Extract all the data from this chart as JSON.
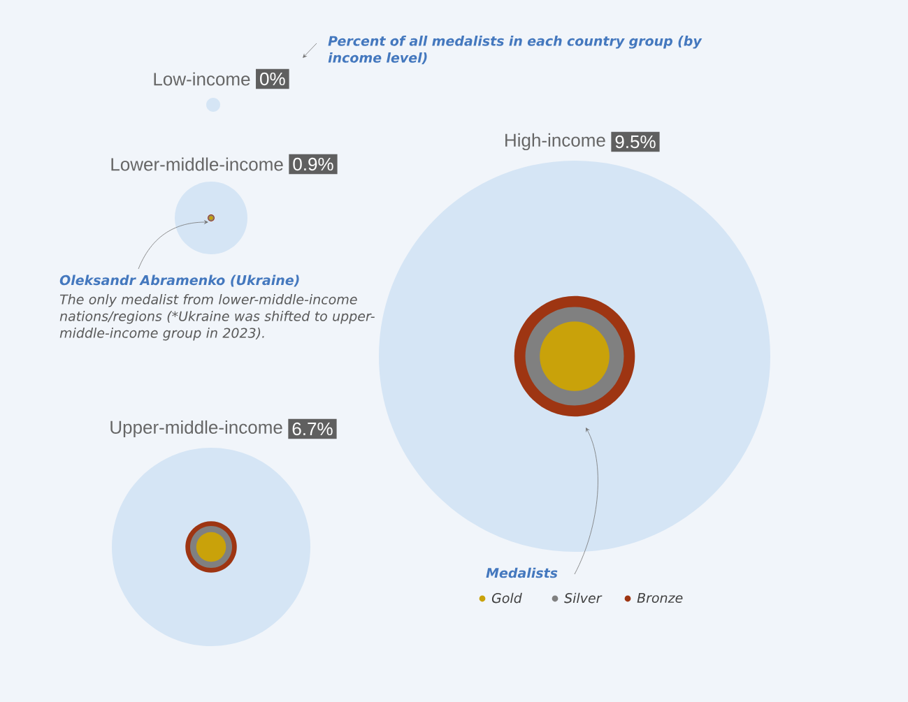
{
  "chart_data": {
    "type": "other",
    "categories": [
      "Low-income",
      "Lower-middle-income",
      "Upper-middle-income",
      "High-income"
    ],
    "values": [
      0,
      0.9,
      6.7,
      9.5
    ],
    "value_labels": [
      "0%",
      "0.9%",
      "6.7%",
      "9.5%"
    ],
    "legend_title": "Medalists",
    "series": [
      {
        "name": "Gold",
        "color": "#c9a20a",
        "values": [
          null,
          null,
          null,
          null
        ]
      },
      {
        "name": "Silver",
        "color": "#808080",
        "values": [
          null,
          null,
          null,
          null
        ]
      },
      {
        "name": "Bronze",
        "color": "#9e3512",
        "values": [
          null,
          null,
          null,
          null
        ]
      }
    ],
    "legend": "bottom right",
    "annotations": [
      "Percent of all medalists in each country group (by income level)",
      "Oleksandr Abramenko (Ukraine)",
      "The only medalist from lower-middle-income nations/regions (*Ukraine was shifted to upper-middle-income group in 2023)."
    ]
  }
}
